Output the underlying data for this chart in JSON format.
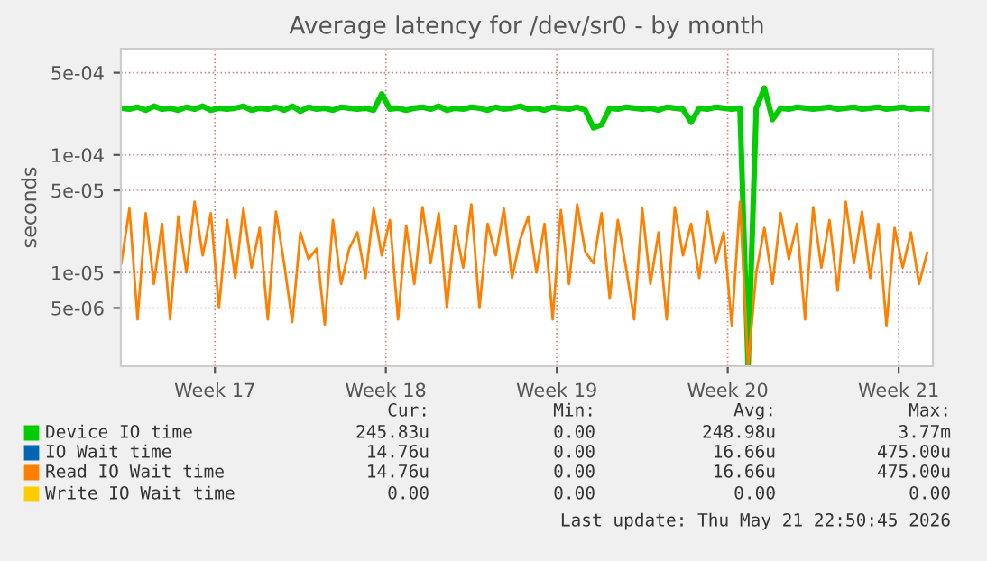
{
  "chart_data": {
    "type": "line",
    "title": "Average latency for /dev/sr0 - by month",
    "ylabel": "seconds",
    "log": "y",
    "ylim": [
      1.6e-06,
      0.0008
    ],
    "yticks": [
      {
        "value": 5e-06,
        "label": "5e-06"
      },
      {
        "value": 1e-05,
        "label": "1e-05"
      },
      {
        "value": 5e-05,
        "label": "5e-05"
      },
      {
        "value": 0.0001,
        "label": "1e-04"
      },
      {
        "value": 0.0005,
        "label": "5e-04"
      }
    ],
    "xlim": [
      "2026-04-19T15:36",
      "2026-05-22T21:36"
    ],
    "xticks": [
      {
        "value": "2026-04-23T12:00",
        "label": "Week 17"
      },
      {
        "value": "2026-04-30T12:00",
        "label": "Week 18"
      },
      {
        "value": "2026-05-07T12:00",
        "label": "Week 19"
      },
      {
        "value": "2026-05-14T12:00",
        "label": "Week 20"
      },
      {
        "value": "2026-05-21T12:00",
        "label": "Week 21"
      }
    ],
    "grid": true,
    "legend": "bottom",
    "marker": "none",
    "line_style": "solid",
    "x": [
      "2026-04-19T16:00",
      "2026-04-20T00:00",
      "2026-04-20T08:00",
      "2026-04-20T16:00",
      "2026-04-21T00:00",
      "2026-04-21T08:00",
      "2026-04-21T16:00",
      "2026-04-22T00:00",
      "2026-04-22T08:00",
      "2026-04-22T16:00",
      "2026-04-23T00:00",
      "2026-04-23T08:00",
      "2026-04-23T16:00",
      "2026-04-24T00:00",
      "2026-04-24T08:00",
      "2026-04-24T16:00",
      "2026-04-25T00:00",
      "2026-04-25T08:00",
      "2026-04-25T16:00",
      "2026-04-26T00:00",
      "2026-04-26T08:00",
      "2026-04-26T16:00",
      "2026-04-27T00:00",
      "2026-04-27T08:00",
      "2026-04-27T16:00",
      "2026-04-28T00:00",
      "2026-04-28T08:00",
      "2026-04-28T16:00",
      "2026-04-29T00:00",
      "2026-04-29T08:00",
      "2026-04-29T16:00",
      "2026-04-30T00:00",
      "2026-04-30T08:00",
      "2026-04-30T16:00",
      "2026-05-01T00:00",
      "2026-05-01T08:00",
      "2026-05-01T16:00",
      "2026-05-02T00:00",
      "2026-05-02T08:00",
      "2026-05-02T16:00",
      "2026-05-03T00:00",
      "2026-05-03T08:00",
      "2026-05-03T16:00",
      "2026-05-04T00:00",
      "2026-05-04T08:00",
      "2026-05-04T16:00",
      "2026-05-05T00:00",
      "2026-05-05T08:00",
      "2026-05-05T16:00",
      "2026-05-06T00:00",
      "2026-05-06T08:00",
      "2026-05-06T16:00",
      "2026-05-07T00:00",
      "2026-05-07T08:00",
      "2026-05-07T16:00",
      "2026-05-08T00:00",
      "2026-05-08T08:00",
      "2026-05-08T16:00",
      "2026-05-09T00:00",
      "2026-05-09T08:00",
      "2026-05-09T16:00",
      "2026-05-10T00:00",
      "2026-05-10T08:00",
      "2026-05-10T16:00",
      "2026-05-11T00:00",
      "2026-05-11T08:00",
      "2026-05-11T16:00",
      "2026-05-12T00:00",
      "2026-05-12T08:00",
      "2026-05-12T16:00",
      "2026-05-13T00:00",
      "2026-05-13T08:00",
      "2026-05-13T16:00",
      "2026-05-14T00:00",
      "2026-05-14T08:00",
      "2026-05-14T16:00",
      "2026-05-15T00:00",
      "2026-05-15T08:00",
      "2026-05-15T16:00",
      "2026-05-16T00:00",
      "2026-05-16T08:00",
      "2026-05-16T16:00",
      "2026-05-17T00:00",
      "2026-05-17T08:00",
      "2026-05-17T16:00",
      "2026-05-18T00:00",
      "2026-05-18T08:00",
      "2026-05-18T16:00",
      "2026-05-19T00:00",
      "2026-05-19T08:00",
      "2026-05-19T16:00",
      "2026-05-20T00:00",
      "2026-05-20T08:00",
      "2026-05-20T16:00",
      "2026-05-21T00:00",
      "2026-05-21T08:00",
      "2026-05-21T16:00",
      "2026-05-22T00:00",
      "2026-05-22T08:00",
      "2026-05-22T16:00"
    ],
    "series": [
      {
        "name": "Device IO time",
        "color": "#00cc00",
        "values": [
          0.00025,
          0.000245,
          0.000255,
          0.00024,
          0.00026,
          0.000245,
          0.00025,
          0.00024,
          0.000255,
          0.000245,
          0.00026,
          0.00024,
          0.00025,
          0.000245,
          0.00025,
          0.00026,
          0.00024,
          0.00025,
          0.000245,
          0.000255,
          0.00024,
          0.00026,
          0.000235,
          0.000255,
          0.000245,
          0.00025,
          0.00024,
          0.000255,
          0.00025,
          0.000245,
          0.00025,
          0.00024,
          0.00033,
          0.000245,
          0.00025,
          0.00024,
          0.00025,
          0.000255,
          0.000245,
          0.00026,
          0.00024,
          0.00025,
          0.000245,
          0.000255,
          0.00025,
          0.00024,
          0.000255,
          0.000245,
          0.00025,
          0.00026,
          0.000245,
          0.00025,
          0.00024,
          0.000255,
          0.00025,
          0.000245,
          0.000255,
          0.00024,
          0.00017,
          0.00018,
          0.00025,
          0.000245,
          0.000255,
          0.00025,
          0.000245,
          0.00025,
          0.00024,
          0.000255,
          0.00025,
          0.000245,
          0.00019,
          0.00025,
          0.000245,
          0.000255,
          0.00025,
          0.000245,
          0.00025,
          1.6e-06,
          0.00025,
          0.00037,
          0.0002,
          0.00025,
          0.000245,
          0.000255,
          0.00025,
          0.000245,
          0.00025,
          0.000255,
          0.000245,
          0.00025,
          0.000255,
          0.000245,
          0.00025,
          0.000255,
          0.000245,
          0.00025,
          0.000255,
          0.000245,
          0.00025,
          0.000246
        ]
      },
      {
        "name": "IO Wait time",
        "color": "#0066b3",
        "values": [
          null,
          null,
          null,
          null,
          null,
          null,
          null,
          null,
          null,
          null,
          null,
          null,
          null,
          null,
          null,
          null,
          null,
          null,
          null,
          null,
          null,
          null,
          null,
          null,
          null,
          null,
          null,
          null,
          null,
          null,
          null,
          null,
          null,
          null,
          null,
          null,
          null,
          null,
          null,
          null,
          null,
          null,
          null,
          null,
          null,
          null,
          null,
          null,
          null,
          null,
          null,
          null,
          null,
          null,
          null,
          null,
          null,
          null,
          null,
          null,
          null,
          null,
          null,
          null,
          null,
          null,
          null,
          null,
          null,
          null,
          null,
          null,
          null,
          null,
          null,
          null,
          null,
          null,
          null,
          null,
          null,
          null,
          null,
          null,
          null,
          null,
          null,
          null,
          null,
          null,
          null,
          null,
          null,
          null,
          null,
          null,
          null,
          null,
          null,
          null
        ]
      },
      {
        "name": "Read IO Wait time",
        "color": "#ff8000",
        "values": [
          1.2e-05,
          3.5e-05,
          4e-06,
          3.2e-05,
          8e-06,
          2.6e-05,
          4e-06,
          3e-05,
          1e-05,
          4e-05,
          1.4e-05,
          3.2e-05,
          5e-06,
          2.8e-05,
          9e-06,
          3.5e-05,
          1.1e-05,
          2.4e-05,
          4e-06,
          3.3e-05,
          1.2e-05,
          3.8e-06,
          2.2e-05,
          1.3e-05,
          1.6e-05,
          3.6e-06,
          2.8e-05,
          8e-06,
          1.6e-05,
          2.2e-05,
          9e-06,
          3.5e-05,
          1.4e-05,
          2.8e-05,
          4e-06,
          2.5e-05,
          8e-06,
          3.6e-05,
          1.2e-05,
          3.2e-05,
          5e-06,
          2.5e-05,
          1.1e-05,
          3.8e-05,
          5e-06,
          2.6e-05,
          1.4e-05,
          3.5e-05,
          9e-06,
          1.9e-05,
          3e-05,
          1e-05,
          2.6e-05,
          4e-06,
          3.4e-05,
          8e-06,
          3.8e-05,
          1.5e-05,
          1.2e-05,
          3.2e-05,
          6e-06,
          2.8e-05,
          1.1e-05,
          4e-06,
          3.5e-05,
          8e-06,
          2.2e-05,
          4e-06,
          3.6e-05,
          1.4e-05,
          2.6e-05,
          9e-06,
          3.3e-05,
          1.2e-05,
          2.2e-05,
          3.5e-06,
          4e-05,
          1.6e-06,
          1e-05,
          2.4e-05,
          8e-06,
          3.2e-05,
          1.3e-05,
          2.6e-05,
          4e-06,
          3.6e-05,
          1.1e-05,
          2.8e-05,
          7e-06,
          4e-05,
          1.2e-05,
          3.3e-05,
          9e-06,
          2.6e-05,
          3.5e-06,
          2.4e-05,
          1.1e-05,
          2.2e-05,
          8e-06,
          1.476e-05
        ]
      },
      {
        "name": "Write IO Wait time",
        "color": "#ffcc00",
        "values": [
          null,
          null,
          null,
          null,
          null,
          null,
          null,
          null,
          null,
          null,
          null,
          null,
          null,
          null,
          null,
          null,
          null,
          null,
          null,
          null,
          null,
          null,
          null,
          null,
          null,
          null,
          null,
          null,
          null,
          null,
          null,
          null,
          null,
          null,
          null,
          null,
          null,
          null,
          null,
          null,
          null,
          null,
          null,
          null,
          null,
          null,
          null,
          null,
          null,
          null,
          null,
          null,
          null,
          null,
          null,
          null,
          null,
          null,
          null,
          null,
          null,
          null,
          null,
          null,
          null,
          null,
          null,
          null,
          null,
          null,
          null,
          null,
          null,
          null,
          null,
          null,
          null,
          null,
          null,
          null,
          null,
          null,
          null,
          null,
          null,
          null,
          null,
          null,
          null,
          null,
          null,
          null,
          null,
          null,
          null,
          null,
          null,
          null,
          null,
          null
        ]
      }
    ],
    "annotations": [
      "Cur:",
      "Min:",
      "Avg:",
      "Max:",
      "245.83u",
      "0.00",
      "248.98u",
      "3.77m",
      "14.76u",
      "0.00",
      "16.66u",
      "475.00u",
      "14.76u",
      "0.00",
      "16.66u",
      "475.00u",
      "0.00",
      "0.00",
      "0.00",
      "0.00",
      "Last update: Thu May 21 22:50:45 2026"
    ]
  }
}
